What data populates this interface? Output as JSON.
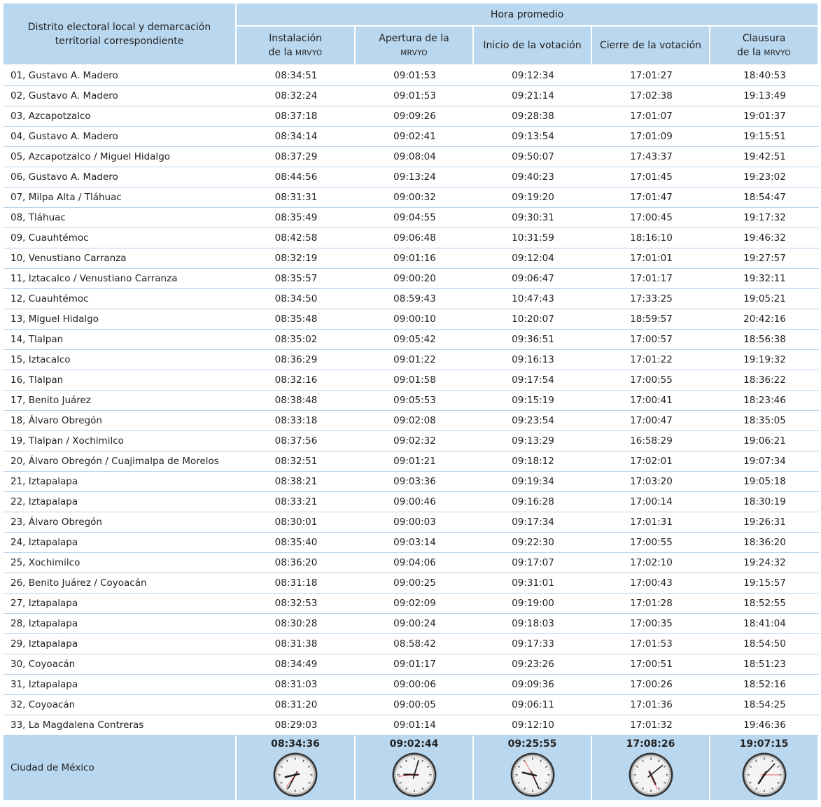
{
  "header": {
    "first_column": "Distrito electoral local y demarcación territorial correspondiente",
    "group": "Hora promedio",
    "columns": [
      {
        "lines": [
          {
            "text": "Instalación"
          },
          {
            "text": "de la",
            "acronym": "MRVYO"
          }
        ]
      },
      {
        "lines": [
          {
            "text": "Apertura de la"
          },
          {
            "acronym": "MRVYO"
          }
        ]
      },
      {
        "lines": [
          {
            "text": "Inicio de la votación"
          }
        ]
      },
      {
        "lines": [
          {
            "text": "Cierre de la votación"
          }
        ]
      },
      {
        "lines": [
          {
            "text": "Clausura"
          },
          {
            "text": "de la",
            "acronym": "MRVYO"
          }
        ]
      }
    ]
  },
  "table": {
    "rows": [
      [
        "01, Gustavo A. Madero",
        "08:34:51",
        "09:01:53",
        "09:12:34",
        "17:01:27",
        "18:40:53"
      ],
      [
        "02, Gustavo A. Madero",
        "08:32:24",
        "09:01:53",
        "09:21:14",
        "17:02:38",
        "19:13:49"
      ],
      [
        "03, Azcapotzalco",
        "08:37:18",
        "09:09:26",
        "09:28:38",
        "17:01:07",
        "19:01:37"
      ],
      [
        "04, Gustavo A. Madero",
        "08:34:14",
        "09:02:41",
        "09:13:54",
        "17:01:09",
        "19:15:51"
      ],
      [
        "05, Azcapotzalco / Miguel Hidalgo",
        "08:37:29",
        "09:08:04",
        "09:50:07",
        "17:43:37",
        "19:42:51"
      ],
      [
        "06, Gustavo A. Madero",
        "08:44:56",
        "09:13:24",
        "09:40:23",
        "17:01:45",
        "19:23:02"
      ],
      [
        "07, Milpa Alta / Tláhuac",
        "08:31:31",
        "09:00:32",
        "09:19:20",
        "17:01:47",
        "18:54:47"
      ],
      [
        "08, Tláhuac",
        "08:35:49",
        "09:04:55",
        "09:30:31",
        "17:00:45",
        "19:17:32"
      ],
      [
        "09, Cuauhtémoc",
        "08:42:58",
        "09:06:48",
        "10:31:59",
        "18:16:10",
        "19:46:32"
      ],
      [
        "10, Venustiano Carranza",
        "08:32:19",
        "09:01:16",
        "09:12:04",
        "17:01:01",
        "19:27:57"
      ],
      [
        "11, Iztacalco / Venustiano Carranza",
        "08:35:57",
        "09:00:20",
        "09:06:47",
        "17:01:17",
        "19:32:11"
      ],
      [
        "12, Cuauhtémoc",
        "08:34:50",
        "08:59:43",
        "10:47:43",
        "17:33:25",
        "19:05:21"
      ],
      [
        "13, Miguel Hidalgo",
        "08:35:48",
        "09:00:10",
        "10:20:07",
        "18:59:57",
        "20:42:16"
      ],
      [
        "14, Tlalpan",
        "08:35:02",
        "09:05:42",
        "09:36:51",
        "17:00:57",
        "18:56:38"
      ],
      [
        "15, Iztacalco",
        "08:36:29",
        "09:01:22",
        "09:16:13",
        "17:01:22",
        "19:19:32"
      ],
      [
        "16, Tlalpan",
        "08:32:16",
        "09:01:58",
        "09:17:54",
        "17:00:55",
        "18:36:22"
      ],
      [
        "17, Benito Juárez",
        "08:38:48",
        "09:05:53",
        "09:15:19",
        "17:00:41",
        "18:23:46"
      ],
      [
        "18, Álvaro Obregón",
        "08:33:18",
        "09:02:08",
        "09:23:54",
        "17:00:47",
        "18:35:05"
      ],
      [
        "19, Tlalpan / Xochimilco",
        "08:37:56",
        "09:02:32",
        "09:13:29",
        "16:58:29",
        "19:06:21"
      ],
      [
        "20, Álvaro Obregón / Cuajimalpa de Morelos",
        "08:32:51",
        "09:01:21",
        "09:18:12",
        "17:02:01",
        "19:07:34"
      ],
      [
        "21, Iztapalapa",
        "08:38:21",
        "09:03:36",
        "09:19:34",
        "17:03:20",
        "19:05:18"
      ],
      [
        "22, Iztapalapa",
        "08:33:21",
        "09:00:46",
        "09:16:28",
        "17:00:14",
        "18:30:19"
      ],
      [
        "23, Álvaro Obregón",
        "08:30:01",
        "09:00:03",
        "09:17:34",
        "17:01:31",
        "19:26:31"
      ],
      [
        "24, Iztapalapa",
        "08:35:40",
        "09:03:14",
        "09:22:30",
        "17:00:55",
        "18:36:20"
      ],
      [
        "25, Xochimilco",
        "08:36:20",
        "09:04:06",
        "09:17:07",
        "17:02:10",
        "19:24:32"
      ],
      [
        "26, Benito Juárez / Coyoacán",
        "08:31:18",
        "09:00:25",
        "09:31:01",
        "17:00:43",
        "19:15:57"
      ],
      [
        "27, Iztapalapa",
        "08:32:53",
        "09:02:09",
        "09:19:00",
        "17:01:28",
        "18:52:55"
      ],
      [
        "28, Iztapalapa",
        "08:30:28",
        "09:00:24",
        "09:18:03",
        "17:00:35",
        "18:41:04"
      ],
      [
        "29, Iztapalapa",
        "08:31:38",
        "08:58:42",
        "09:17:33",
        "17:01:53",
        "18:54:50"
      ],
      [
        "30, Coyoacán",
        "08:34:49",
        "09:01:17",
        "09:23:26",
        "17:00:51",
        "18:51:23"
      ],
      [
        "31, Iztapalapa",
        "08:31:03",
        "09:00:06",
        "09:09:36",
        "17:00:26",
        "18:52:16"
      ],
      [
        "32, Coyoacán",
        "08:31:20",
        "09:00:05",
        "09:06:11",
        "17:01:36",
        "18:54:25"
      ],
      [
        "33, La Magdalena Contreras",
        "08:29:03",
        "09:01:14",
        "09:12:10",
        "17:01:32",
        "19:46:36"
      ]
    ]
  },
  "footer": {
    "label": "Ciudad de México",
    "values": [
      "08:34:36",
      "09:02:44",
      "09:25:55",
      "17:08:26",
      "19:07:15"
    ]
  }
}
